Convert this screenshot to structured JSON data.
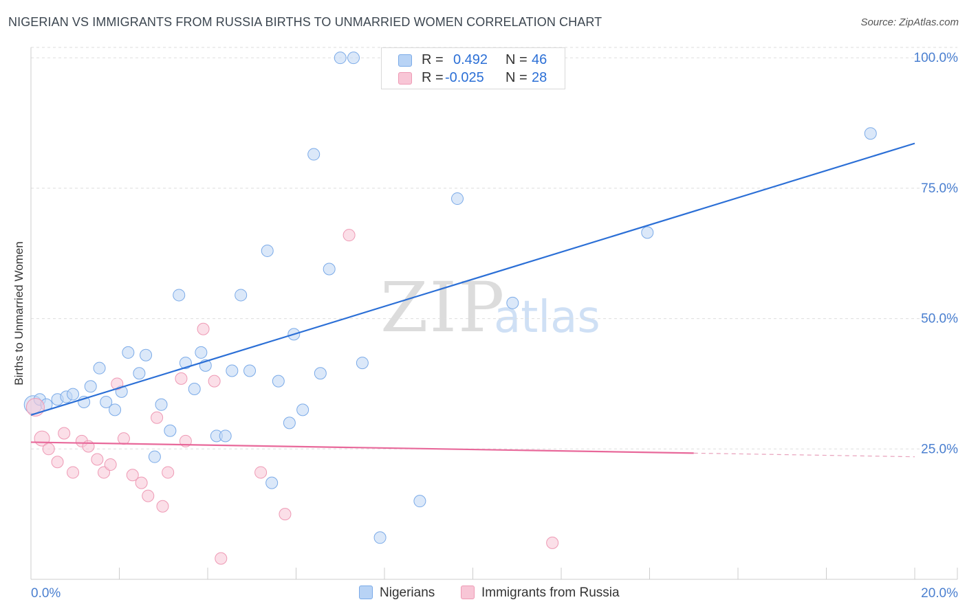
{
  "header": {
    "title": "NIGERIAN VS IMMIGRANTS FROM RUSSIA BIRTHS TO UNMARRIED WOMEN CORRELATION CHART",
    "source": "Source: ZipAtlas.com"
  },
  "watermark": {
    "zip": "ZIP",
    "atlas": "atlas"
  },
  "legend": {
    "rows": [
      {
        "r_label": "R =",
        "r_value": "0.492",
        "n_label": "N =",
        "n_value": "46",
        "color": "#b8d3f5",
        "border": "#7aaae8"
      },
      {
        "r_label": "R =",
        "r_value": "-0.025",
        "n_label": "N =",
        "n_value": "28",
        "color": "#f8c6d6",
        "border": "#ee99b4"
      }
    ]
  },
  "bottom_legend": {
    "series1": "Nigerians",
    "series2": "Immigrants from Russia"
  },
  "chart_data": {
    "type": "scatter",
    "title": "NIGERIAN VS IMMIGRANTS FROM RUSSIA BIRTHS TO UNMARRIED WOMEN CORRELATION CHART",
    "xlabel": "",
    "ylabel": "Births to Unmarried Women",
    "xlim": [
      0,
      20
    ],
    "ylim": [
      0,
      102
    ],
    "x_tick_labels": [
      "0.0%",
      "20.0%"
    ],
    "y_ticks": [
      25,
      50,
      75,
      100
    ],
    "y_tick_labels": [
      "25.0%",
      "50.0%",
      "75.0%",
      "100.0%"
    ],
    "grid": true,
    "series": [
      {
        "name": "Nigerians",
        "color": "#7aaae8",
        "fill": "#c3d9f5",
        "r": 0.492,
        "n": 46,
        "trend": {
          "x0": 0,
          "y0": 31.5,
          "x1": 20,
          "y1": 83.6
        },
        "points": [
          [
            0.05,
            33.5
          ],
          [
            0.2,
            34.5
          ],
          [
            0.35,
            33.5
          ],
          [
            0.6,
            34.5
          ],
          [
            0.8,
            35
          ],
          [
            0.95,
            35.5
          ],
          [
            1.2,
            34
          ],
          [
            1.35,
            37
          ],
          [
            1.55,
            40.5
          ],
          [
            1.7,
            34
          ],
          [
            1.9,
            32.5
          ],
          [
            2.05,
            36
          ],
          [
            2.2,
            43.5
          ],
          [
            2.45,
            39.5
          ],
          [
            2.6,
            43
          ],
          [
            2.8,
            23.5
          ],
          [
            2.95,
            33.5
          ],
          [
            3.15,
            28.5
          ],
          [
            3.35,
            54.5
          ],
          [
            3.5,
            41.5
          ],
          [
            3.7,
            36.5
          ],
          [
            3.85,
            43.5
          ],
          [
            3.95,
            41
          ],
          [
            4.2,
            27.5
          ],
          [
            4.4,
            27.5
          ],
          [
            4.55,
            40
          ],
          [
            4.75,
            54.5
          ],
          [
            4.95,
            40
          ],
          [
            5.35,
            63
          ],
          [
            5.45,
            18.5
          ],
          [
            5.6,
            38
          ],
          [
            5.85,
            30
          ],
          [
            5.95,
            47
          ],
          [
            6.15,
            32.5
          ],
          [
            6.4,
            81.5
          ],
          [
            6.55,
            39.5
          ],
          [
            6.75,
            59.5
          ],
          [
            7.0,
            100
          ],
          [
            7.3,
            100
          ],
          [
            7.5,
            41.5
          ],
          [
            7.9,
            8
          ],
          [
            8.8,
            15
          ],
          [
            9.65,
            73
          ],
          [
            10.9,
            53
          ],
          [
            13.95,
            66.5
          ],
          [
            19.0,
            85.5
          ]
        ]
      },
      {
        "name": "Immigrants from Russia",
        "color": "#ee99b4",
        "fill": "#f8c9d8",
        "r": -0.025,
        "n": 28,
        "trend": {
          "x0": 0,
          "y0": 26.3,
          "x1": 15,
          "y1": 24.2,
          "dash_to_x": 20,
          "dash_to_y": 23.5
        },
        "points": [
          [
            0.1,
            33
          ],
          [
            0.25,
            27
          ],
          [
            0.4,
            25
          ],
          [
            0.6,
            22.5
          ],
          [
            0.75,
            28
          ],
          [
            0.95,
            20.5
          ],
          [
            1.15,
            26.5
          ],
          [
            1.3,
            25.5
          ],
          [
            1.5,
            23
          ],
          [
            1.65,
            20.5
          ],
          [
            1.8,
            22
          ],
          [
            1.95,
            37.5
          ],
          [
            2.1,
            27
          ],
          [
            2.3,
            20
          ],
          [
            2.5,
            18.5
          ],
          [
            2.65,
            16
          ],
          [
            2.85,
            31
          ],
          [
            2.98,
            14
          ],
          [
            3.1,
            20.5
          ],
          [
            3.4,
            38.5
          ],
          [
            3.5,
            26.5
          ],
          [
            3.9,
            48
          ],
          [
            4.15,
            38
          ],
          [
            4.3,
            4
          ],
          [
            5.2,
            20.5
          ],
          [
            5.75,
            12.5
          ],
          [
            7.2,
            66
          ],
          [
            11.8,
            7
          ]
        ]
      }
    ]
  }
}
